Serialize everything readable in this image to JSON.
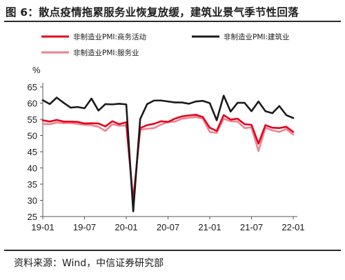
{
  "title": "图 6：散点疫情拖累服务业恢复放缓，建筑业景气季节性回落",
  "source": "资料来源：Wind，中信证券研究部",
  "colors": {
    "business": "#e3001b",
    "construction": "#1a1a1a",
    "services": "#f08090"
  },
  "chart_data": {
    "type": "line",
    "title": "",
    "xlabel": "",
    "ylabel": "%",
    "ylim": [
      25,
      65
    ],
    "yticks": [
      25,
      30,
      35,
      40,
      45,
      50,
      55,
      60,
      65
    ],
    "xtick_labels": [
      "19-01",
      "19-07",
      "20-01",
      "20-07",
      "21-01",
      "21-07",
      "22-01"
    ],
    "grid": false,
    "legend_position": "top",
    "x": [
      "19-01",
      "19-02",
      "19-03",
      "19-04",
      "19-05",
      "19-06",
      "19-07",
      "19-08",
      "19-09",
      "19-10",
      "19-11",
      "19-12",
      "20-01",
      "20-02",
      "20-03",
      "20-04",
      "20-05",
      "20-06",
      "20-07",
      "20-08",
      "20-09",
      "20-10",
      "20-11",
      "20-12",
      "21-01",
      "21-02",
      "21-03",
      "21-04",
      "21-05",
      "21-06",
      "21-07",
      "21-08",
      "21-09",
      "21-10",
      "21-11",
      "21-12",
      "22-01"
    ],
    "series": [
      {
        "name": "非制造业PMI:商务活动",
        "color_key": "business",
        "values": [
          54.7,
          54.3,
          54.8,
          54.3,
          54.3,
          54.2,
          53.7,
          53.8,
          53.7,
          52.8,
          54.4,
          53.5,
          54.1,
          29.6,
          52.3,
          53.2,
          53.6,
          54.4,
          54.2,
          55.2,
          55.9,
          56.2,
          56.4,
          55.7,
          52.4,
          51.4,
          56.3,
          54.9,
          55.2,
          53.5,
          53.3,
          47.5,
          53.2,
          52.4,
          52.3,
          52.7,
          51.1
        ]
      },
      {
        "name": "非制造业PMI:建筑业",
        "color_key": "construction",
        "values": [
          60.9,
          59.7,
          61.7,
          60.1,
          58.6,
          58.8,
          58.4,
          61.4,
          57.7,
          59.7,
          59.6,
          59.8,
          59.6,
          26.6,
          55.1,
          59.7,
          60.8,
          60.8,
          60.5,
          60.2,
          60.2,
          59.8,
          60.5,
          60.7,
          60.0,
          54.7,
          62.3,
          57.4,
          60.1,
          60.1,
          57.5,
          60.5,
          57.5,
          56.9,
          59.1,
          56.3,
          55.4
        ]
      },
      {
        "name": "非制造业PMI:服务业",
        "color_key": "services",
        "values": [
          53.6,
          53.5,
          54.0,
          53.8,
          53.9,
          53.6,
          53.3,
          53.2,
          52.7,
          51.4,
          53.5,
          53.0,
          53.1,
          30.1,
          51.8,
          52.1,
          52.3,
          53.4,
          54.1,
          54.3,
          55.2,
          55.5,
          55.7,
          55.2,
          51.1,
          50.8,
          55.2,
          54.4,
          54.3,
          52.3,
          52.5,
          45.2,
          52.4,
          51.6,
          51.1,
          52.0,
          50.3
        ]
      }
    ]
  }
}
